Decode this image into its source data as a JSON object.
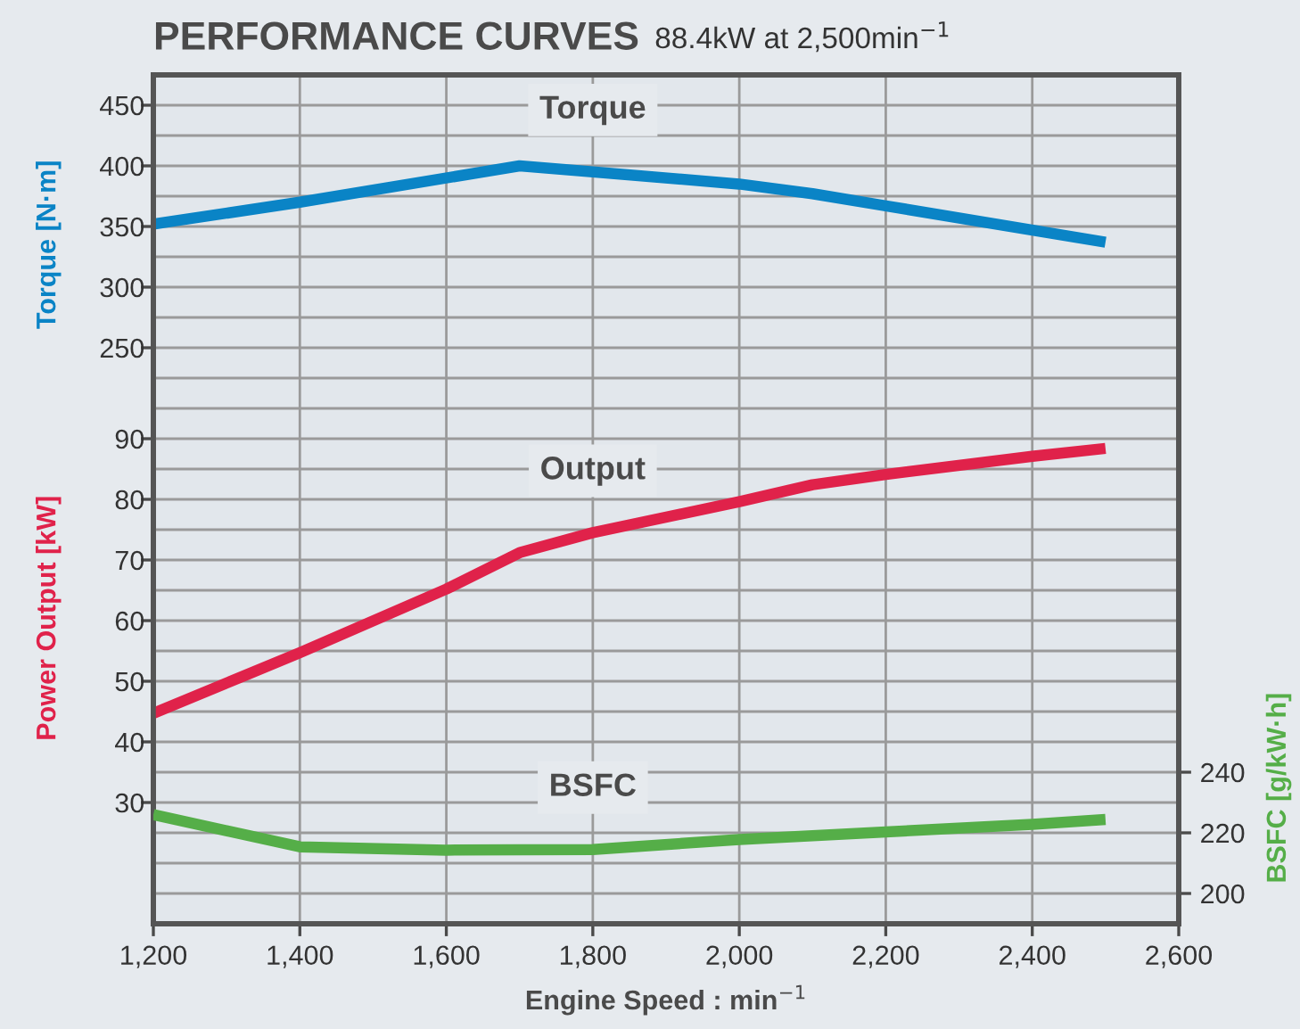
{
  "chart_data": {
    "type": "line",
    "title": "PERFORMANCE CURVES",
    "subtitle": "88.4kW at 2,500min$^{−1}$",
    "xlabel": "Engine Speed : min$^{−1}$",
    "ylabel": "Torque [N·m]",
    "y3label": "Power Output [kW]",
    "y2label": "BSFC [g/kW·h]",
    "xlim": [
      1200,
      2600
    ],
    "xticks": [
      {
        "value": 1200,
        "label": "1,200"
      },
      {
        "value": 1400,
        "label": "1,400"
      },
      {
        "value": 1600,
        "label": "1,600"
      },
      {
        "value": 1800,
        "label": "1,800"
      },
      {
        "value": 2000,
        "label": "2,000"
      },
      {
        "value": 2200,
        "label": "2,200"
      },
      {
        "value": 2400,
        "label": "2,400"
      },
      {
        "value": 2600,
        "label": "2,600"
      }
    ],
    "ylim": [
      -225,
      475
    ],
    "yticks": [
      250,
      {
        "value": 275,
        "label": null
      },
      300,
      {
        "value": 325,
        "label": null
      },
      350,
      {
        "value": 375,
        "label": null
      },
      400,
      {
        "value": 425,
        "label": null
      },
      450
    ],
    "y3lim": [
      10,
      150
    ],
    "y3ticks": [
      {
        "value": 15,
        "label": null
      },
      {
        "value": 20,
        "label": null
      },
      {
        "value": 25,
        "label": null
      },
      30,
      {
        "value": 35,
        "label": null
      },
      40,
      {
        "value": 45,
        "label": null
      },
      50,
      {
        "value": 55,
        "label": null
      },
      60,
      {
        "value": 65,
        "label": null
      },
      70,
      {
        "value": 75,
        "label": null
      },
      80,
      {
        "value": 85,
        "label": null
      },
      90,
      {
        "value": 95,
        "label": null
      },
      {
        "value": 100,
        "label": null
      }
    ],
    "y2lim": [
      190,
      470
    ],
    "y2ticks": [
      200,
      220,
      240
    ],
    "grid": true,
    "legend": false,
    "line_style": "solid",
    "marker": "none",
    "series": [
      {
        "name": "Torque",
        "color": "#0a84c6",
        "x": [
          1200,
          1400,
          1700,
          1800,
          2000,
          2100,
          2200,
          2500
        ],
        "values": [
          352,
          370,
          400,
          395,
          385,
          377,
          367,
          337
        ]
      },
      {
        "name": "Output",
        "color": "#e0224a",
        "axis": "y3",
        "x": [
          1200,
          1400,
          1600,
          1700,
          1800,
          2000,
          2100,
          2200,
          2400,
          2500
        ],
        "values": [
          44.7,
          54.7,
          65.2,
          71.2,
          74.5,
          79.6,
          82.4,
          84.1,
          87.1,
          88.4
        ]
      },
      {
        "name": "BSFC",
        "color": "#55ae48",
        "axis": "y2",
        "x": [
          1200,
          1400,
          1600,
          1800,
          2000,
          2200,
          2400,
          2500
        ],
        "values": [
          226,
          215.4,
          214.3,
          214.5,
          217.8,
          220.3,
          222.8,
          224.4
        ]
      }
    ]
  }
}
